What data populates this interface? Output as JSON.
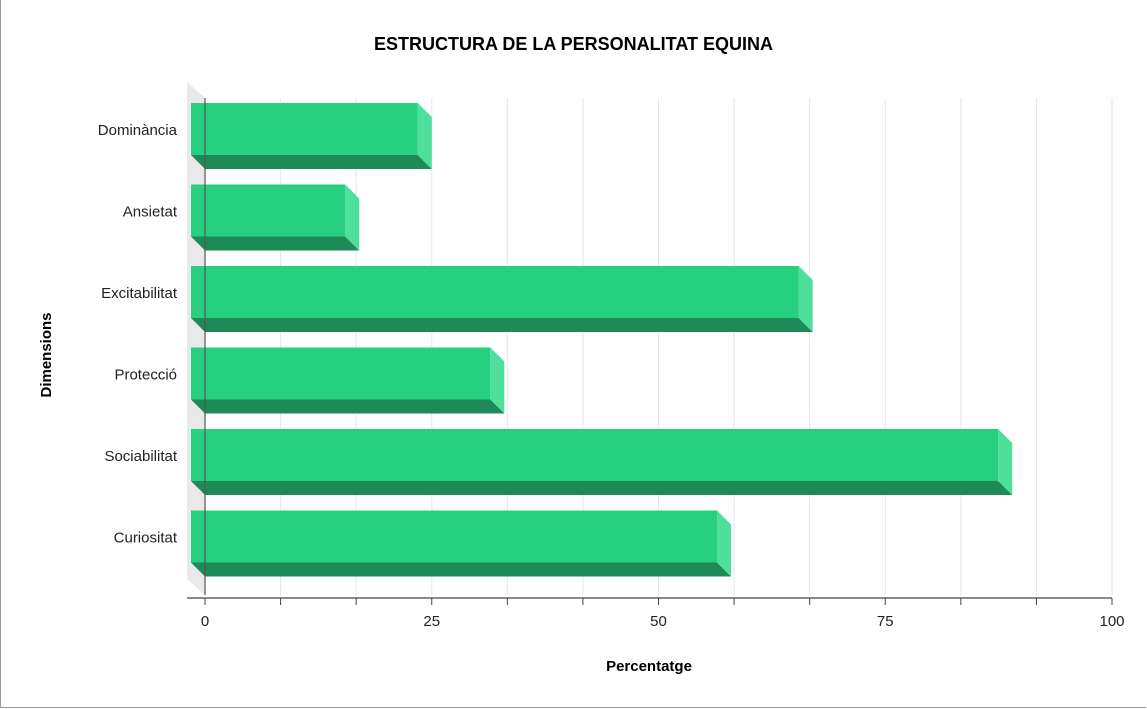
{
  "chart_data": {
    "type": "bar",
    "orientation": "horizontal",
    "title": "ESTRUCTURA DE LA PERSONALITAT EQUINA",
    "xlabel": "Percentatge",
    "ylabel": "Dimensions",
    "categories": [
      "Dominància",
      "Ansietat",
      "Excitabilitat",
      "Protecció",
      "Sociabilitat",
      "Curiositat"
    ],
    "values": [
      25,
      17,
      67,
      33,
      89,
      58
    ],
    "xlim": [
      0,
      100
    ],
    "xticks": [
      "0",
      "25",
      "50",
      "75",
      "100"
    ],
    "grid": true,
    "legend": "none",
    "colors": {
      "bar_face": "#27d07f",
      "bar_bottom": "#1e8a57",
      "bar_side": "#4ee09a",
      "grid": "#e6e6e6"
    }
  }
}
